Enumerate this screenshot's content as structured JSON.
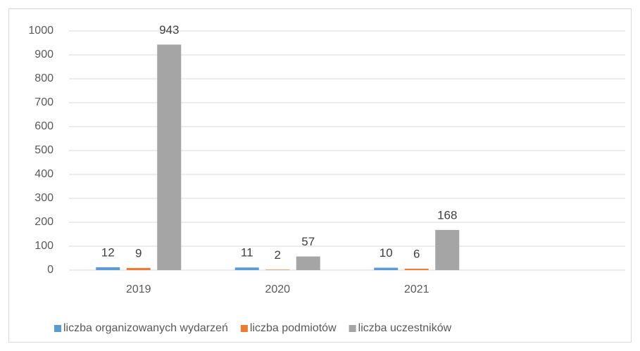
{
  "chart_data": {
    "type": "bar",
    "categories": [
      "2019",
      "2020",
      "2021",
      null
    ],
    "series": [
      {
        "name": "liczba organizowanych wydarzeń",
        "color": "#5b9bd5",
        "values": [
          12,
          11,
          10,
          null
        ]
      },
      {
        "name": "liczba podmiotów",
        "color": "#ed7d31",
        "values": [
          9,
          2,
          6,
          null
        ]
      },
      {
        "name": "liczba uczestników",
        "color": "#a5a5a5",
        "values": [
          943,
          57,
          168,
          null
        ]
      }
    ],
    "ylim": [
      0,
      1000
    ],
    "yticks": [
      0,
      100,
      200,
      300,
      400,
      500,
      600,
      700,
      800,
      900,
      1000
    ],
    "grid": true,
    "legend": "bottom"
  }
}
